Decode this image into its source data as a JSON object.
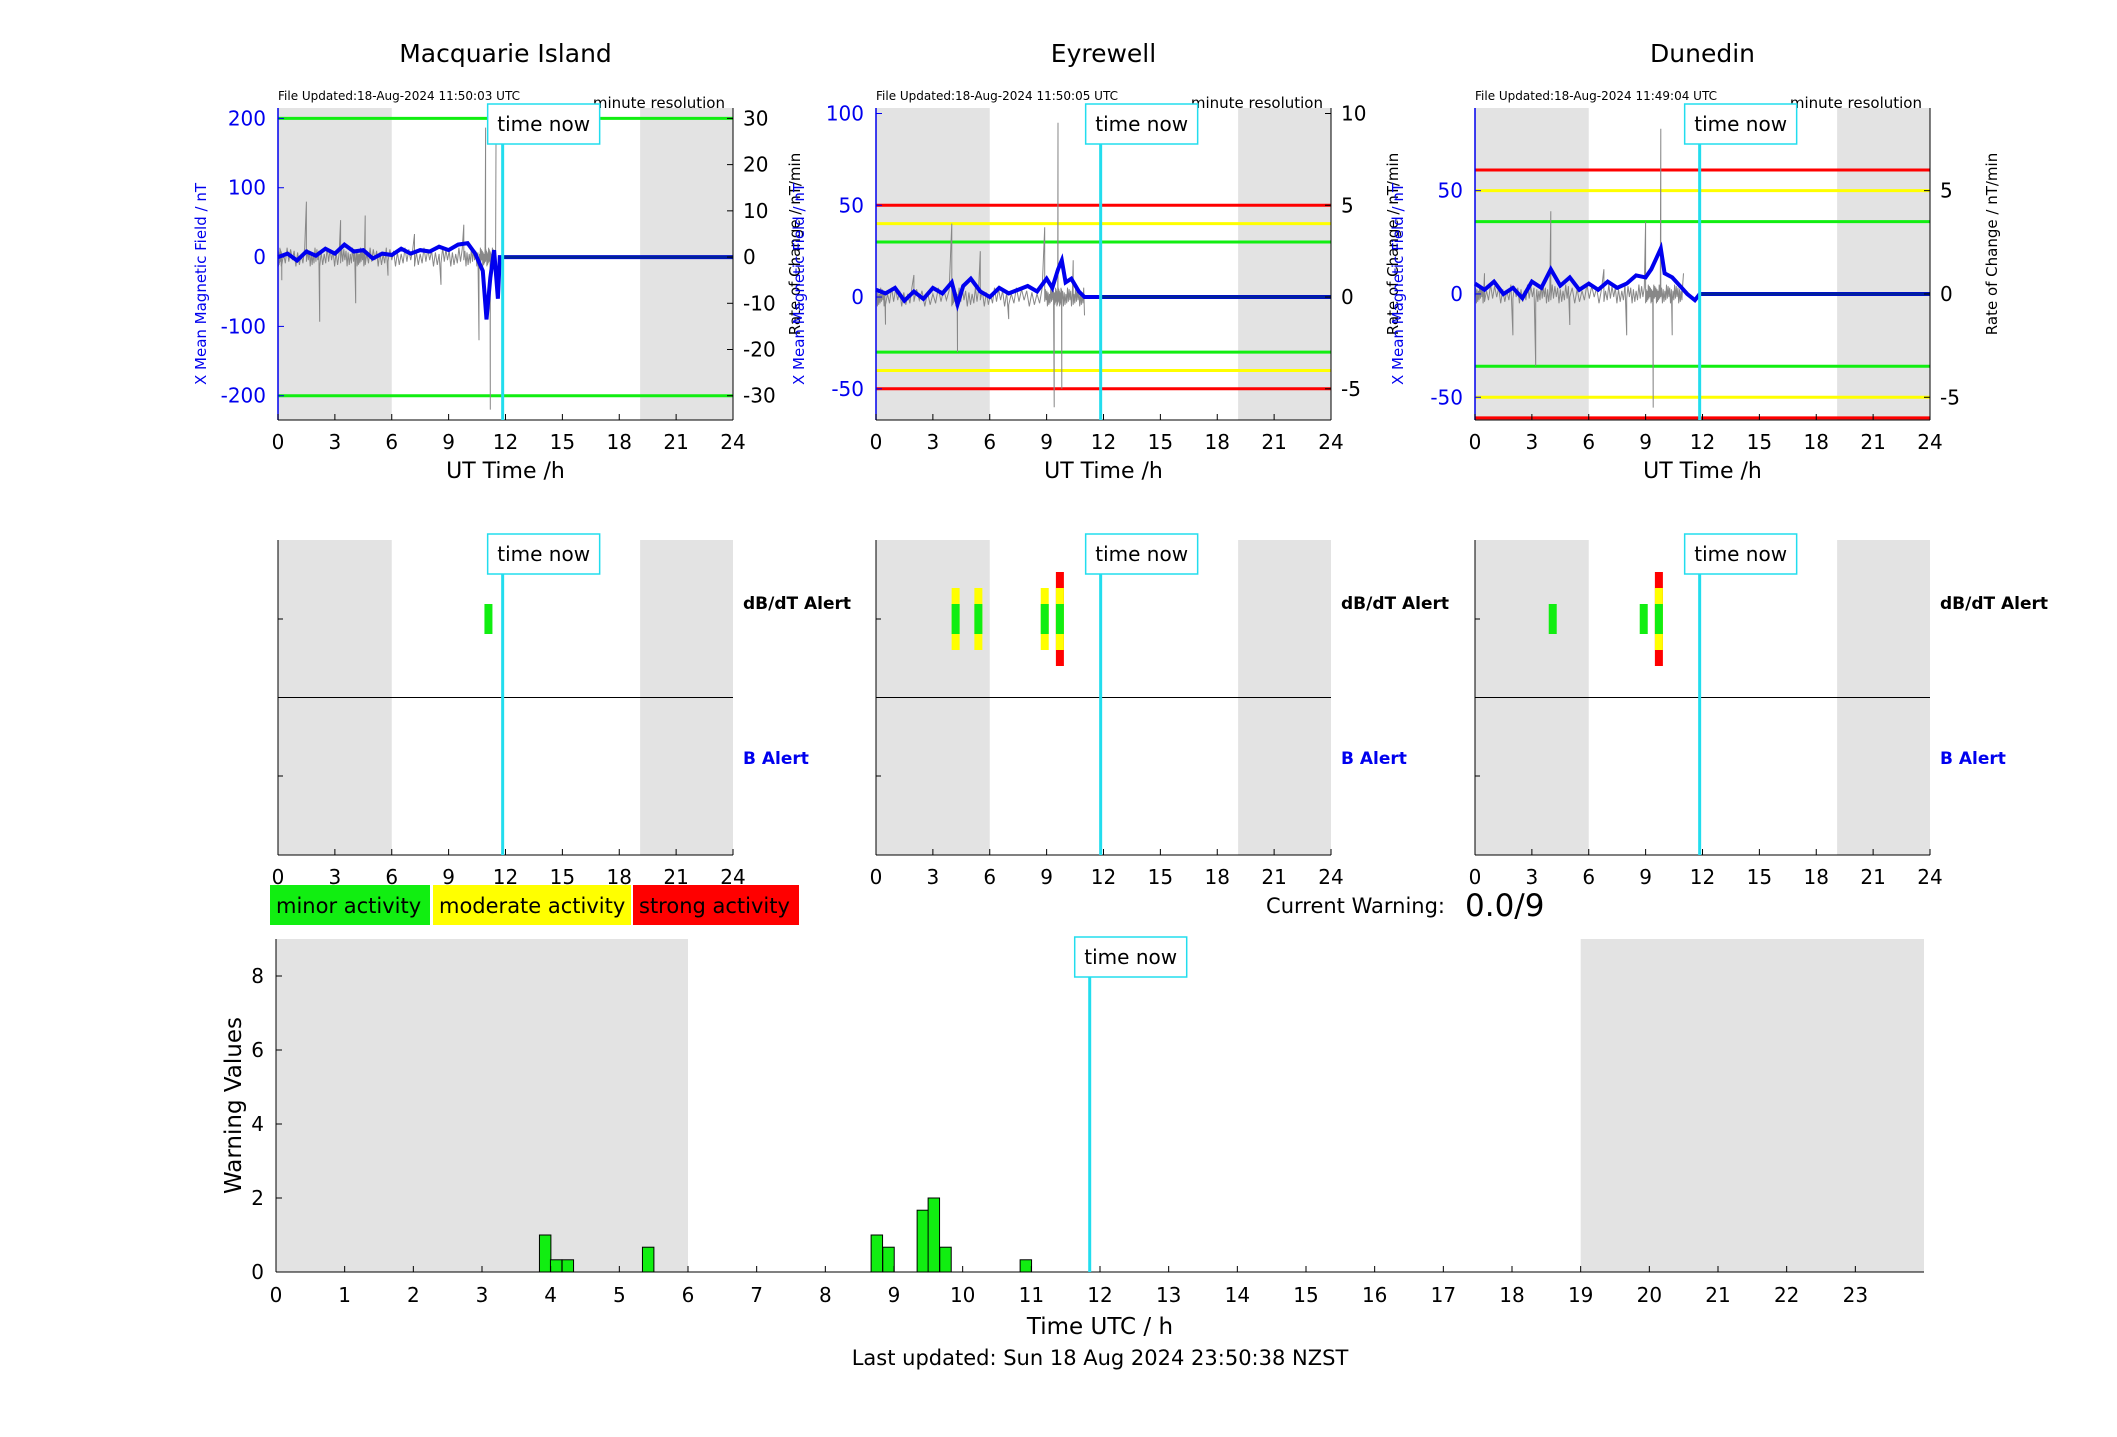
{
  "colors": {
    "x_field": "#0000ee",
    "now_line": "#22ddee",
    "shade": "#e3e3e3",
    "green": "#11ee11",
    "yellow": "#ffff00",
    "red": "#ff0000",
    "rate_trace": "#888888"
  },
  "legend": {
    "minor": "minor activity",
    "moderate": "moderate activity",
    "strong": "strong activity"
  },
  "current_warning": {
    "label": "Current Warning:",
    "value": "0.0/9"
  },
  "time_now_label": "time now",
  "labels": {
    "dbdt_alert": "dB/dT Alert",
    "b_alert": "B Alert",
    "x_field_axis": "X Mean Magnetic Field / nT",
    "rate_axis": "Rate of Change / nT/min",
    "ut_time": "UT Time /h",
    "resolution": "minute resolution"
  },
  "footer": "Last updated: Sun 18 Aug 2024 23:50:38 NZST",
  "chart_data": [
    {
      "type": "line",
      "title": "Macquarie Island",
      "file_updated": "File Updated:18-Aug-2024 11:50:03 UTC",
      "xlabel": "UT Time /h",
      "xlim": [
        0,
        24
      ],
      "xticks": [
        0,
        3,
        6,
        9,
        12,
        15,
        18,
        21,
        24
      ],
      "ylabel_left": "X Mean Magnetic Field / nT",
      "ylim_left": [
        -235,
        215
      ],
      "yticks_left": [
        200,
        100,
        0,
        -100,
        -200
      ],
      "ylabel_right": "Rate of Change / nT/min",
      "ylim_right": [
        -35.25,
        32.25
      ],
      "yticks_right": [
        30,
        20,
        10,
        0,
        -10,
        -20,
        -30
      ],
      "threshold_lines": [
        {
          "value": 200,
          "color": "green"
        },
        {
          "value": -200,
          "color": "green"
        }
      ],
      "shaded_hours": [
        [
          0,
          6
        ],
        [
          19.1,
          24
        ]
      ],
      "time_now": 11.85,
      "x_series": {
        "name": "X Mean Magnetic Field",
        "x": [
          0,
          0.5,
          1,
          1.5,
          2,
          2.5,
          3,
          3.5,
          4,
          4.5,
          5,
          5.5,
          6,
          6.5,
          7,
          7.5,
          8,
          8.5,
          9,
          9.5,
          10,
          10.4,
          10.8,
          11.0,
          11.2,
          11.4,
          11.6,
          11.7,
          11.85,
          24
        ],
        "y": [
          0,
          5,
          -5,
          8,
          2,
          12,
          5,
          18,
          8,
          10,
          -2,
          5,
          3,
          12,
          5,
          10,
          8,
          15,
          10,
          18,
          20,
          5,
          -20,
          -90,
          -30,
          10,
          -60,
          0,
          0,
          0
        ]
      },
      "rate_series": {
        "name": "Rate of Change",
        "x": [
          0.2,
          1.5,
          2.2,
          3.3,
          4.1,
          4.6,
          5.8,
          7.2,
          8.6,
          9.8,
          10.6,
          10.95,
          11.2,
          11.5
        ],
        "y": [
          -5,
          12,
          -14,
          8,
          -10,
          9,
          -4,
          5,
          -6,
          7,
          -18,
          28,
          -33,
          25
        ]
      }
    },
    {
      "type": "line",
      "title": "Eyrewell",
      "file_updated": "File Updated:18-Aug-2024 11:50:05 UTC",
      "xlabel": "UT Time /h",
      "xlim": [
        0,
        24
      ],
      "xticks": [
        0,
        3,
        6,
        9,
        12,
        15,
        18,
        21,
        24
      ],
      "ylabel_left": "X Mean Magnetic Field / nT",
      "ylim_left": [
        -67,
        103
      ],
      "yticks_left": [
        100,
        50,
        0,
        -50
      ],
      "ylabel_right": "Rate of Change / nT/min",
      "ylim_right": [
        -6.7,
        10.3
      ],
      "yticks_right": [
        10,
        5,
        0,
        -5
      ],
      "threshold_lines": [
        {
          "value": 50,
          "color": "red"
        },
        {
          "value": 40,
          "color": "yellow"
        },
        {
          "value": 30,
          "color": "green"
        },
        {
          "value": -30,
          "color": "green"
        },
        {
          "value": -40,
          "color": "yellow"
        },
        {
          "value": -50,
          "color": "red"
        }
      ],
      "shaded_hours": [
        [
          0,
          6
        ],
        [
          19.1,
          24
        ]
      ],
      "time_now": 11.85,
      "x_series": {
        "name": "X Mean Magnetic Field",
        "x": [
          0,
          0.5,
          1,
          1.5,
          2,
          2.5,
          3,
          3.5,
          4,
          4.3,
          4.6,
          5,
          5.5,
          6,
          6.5,
          7,
          7.5,
          8,
          8.5,
          9,
          9.3,
          9.6,
          9.8,
          10,
          10.3,
          10.7,
          11,
          11.85,
          24
        ],
        "y": [
          4,
          2,
          5,
          -2,
          3,
          -1,
          5,
          2,
          8,
          -4,
          6,
          10,
          3,
          0,
          5,
          2,
          4,
          6,
          3,
          10,
          5,
          15,
          20,
          8,
          10,
          3,
          0,
          0,
          0
        ]
      },
      "rate_series": {
        "name": "Rate of Change",
        "x": [
          0.5,
          2.0,
          4.0,
          4.3,
          5.5,
          7.0,
          8.9,
          9.4,
          9.6,
          9.8,
          10.4,
          11.0
        ],
        "y": [
          -1.5,
          1.2,
          4.0,
          -3.0,
          2.5,
          -1.2,
          3.8,
          -6.0,
          9.5,
          -5.0,
          2.0,
          -1.0
        ]
      }
    },
    {
      "type": "line",
      "title": "Dunedin",
      "file_updated": "File Updated:18-Aug-2024 11:49:04 UTC",
      "xlabel": "UT Time /h",
      "xlim": [
        0,
        24
      ],
      "xticks": [
        0,
        3,
        6,
        9,
        12,
        15,
        18,
        21,
        24
      ],
      "ylabel_left": "X Mean Magnetic Field / nT",
      "ylim_left": [
        -61,
        90
      ],
      "yticks_left": [
        50,
        0,
        -50
      ],
      "ylabel_right": "Rate of Change / nT/min",
      "ylim_right": [
        -6.1,
        9.0
      ],
      "yticks_right": [
        5,
        0,
        -5
      ],
      "threshold_lines": [
        {
          "value": 60,
          "color": "red"
        },
        {
          "value": 50,
          "color": "yellow"
        },
        {
          "value": 35,
          "color": "green"
        },
        {
          "value": -35,
          "color": "green"
        },
        {
          "value": -50,
          "color": "yellow"
        },
        {
          "value": -60,
          "color": "red"
        }
      ],
      "shaded_hours": [
        [
          0,
          6
        ],
        [
          19.1,
          24
        ]
      ],
      "time_now": 11.85,
      "x_series": {
        "name": "X Mean Magnetic Field",
        "x": [
          0,
          0.5,
          1,
          1.5,
          2,
          2.5,
          3,
          3.5,
          4,
          4.5,
          5,
          5.5,
          6,
          6.5,
          7,
          7.5,
          8,
          8.5,
          9,
          9.3,
          9.6,
          9.8,
          10,
          10.4,
          10.8,
          11.2,
          11.6,
          11.85,
          24
        ],
        "y": [
          5,
          2,
          6,
          0,
          3,
          -2,
          6,
          3,
          12,
          4,
          8,
          2,
          5,
          2,
          6,
          3,
          5,
          9,
          8,
          12,
          18,
          22,
          10,
          8,
          4,
          0,
          -3,
          0,
          0
        ]
      },
      "rate_series": {
        "name": "Rate of Change",
        "x": [
          0.5,
          2.0,
          3.2,
          4.0,
          5.0,
          6.8,
          8.0,
          9.0,
          9.4,
          9.8,
          10.4,
          11.0
        ],
        "y": [
          1.0,
          -2.0,
          -3.5,
          4.0,
          -1.5,
          1.2,
          -2.0,
          3.5,
          -5.5,
          8.0,
          -2.0,
          1.0
        ]
      }
    },
    {
      "type": "bar",
      "title": "",
      "ylabel": "B Alert",
      "panel_label": "dB/dT Alert",
      "xlim": [
        0,
        24
      ],
      "xticks": [
        0,
        3,
        6,
        9,
        12,
        15,
        18,
        21,
        24
      ],
      "shaded_hours": [
        [
          0,
          6
        ],
        [
          19.1,
          24
        ]
      ],
      "time_now": 11.85,
      "dbdt_alerts": [
        {
          "hour": 11.1,
          "level": 1
        }
      ]
    },
    {
      "type": "bar",
      "title": "",
      "ylabel": "B Alert",
      "panel_label": "dB/dT Alert",
      "xlim": [
        0,
        24
      ],
      "xticks": [
        0,
        3,
        6,
        9,
        12,
        15,
        18,
        21,
        24
      ],
      "shaded_hours": [
        [
          0,
          6
        ],
        [
          19.1,
          24
        ]
      ],
      "time_now": 11.85,
      "dbdt_alerts": [
        {
          "hour": 4.2,
          "level": 2
        },
        {
          "hour": 5.4,
          "level": 2
        },
        {
          "hour": 8.9,
          "level": 2
        },
        {
          "hour": 9.7,
          "level": 3
        }
      ]
    },
    {
      "type": "bar",
      "title": "",
      "ylabel": "B Alert",
      "panel_label": "dB/dT Alert",
      "xlim": [
        0,
        24
      ],
      "xticks": [
        0,
        3,
        6,
        9,
        12,
        15,
        18,
        21,
        24
      ],
      "shaded_hours": [
        [
          0,
          6
        ],
        [
          19.1,
          24
        ]
      ],
      "time_now": 11.85,
      "dbdt_alerts": [
        {
          "hour": 4.1,
          "level": 1
        },
        {
          "hour": 8.9,
          "level": 1
        },
        {
          "hour": 9.7,
          "level": 3
        }
      ]
    },
    {
      "type": "bar",
      "title": "",
      "xlabel": "Time UTC / h",
      "ylabel": "Warning Values",
      "xlim": [
        0,
        24
      ],
      "xticks": [
        0,
        1,
        2,
        3,
        4,
        5,
        6,
        7,
        8,
        9,
        10,
        11,
        12,
        13,
        14,
        15,
        16,
        17,
        18,
        19,
        20,
        21,
        22,
        23
      ],
      "ylim": [
        0,
        9
      ],
      "yticks": [
        0,
        2,
        4,
        6,
        8
      ],
      "shaded_hours": [
        [
          0,
          6
        ],
        [
          19,
          24
        ]
      ],
      "time_now": 11.85,
      "bars": [
        {
          "x": 3.92,
          "value": 1.0
        },
        {
          "x": 4.08,
          "value": 0.33
        },
        {
          "x": 4.25,
          "value": 0.33
        },
        {
          "x": 5.42,
          "value": 0.67
        },
        {
          "x": 8.75,
          "value": 1.0
        },
        {
          "x": 8.92,
          "value": 0.67
        },
        {
          "x": 9.42,
          "value": 1.67
        },
        {
          "x": 9.58,
          "value": 2.0
        },
        {
          "x": 9.75,
          "value": 0.67
        },
        {
          "x": 10.92,
          "value": 0.33
        }
      ]
    }
  ]
}
